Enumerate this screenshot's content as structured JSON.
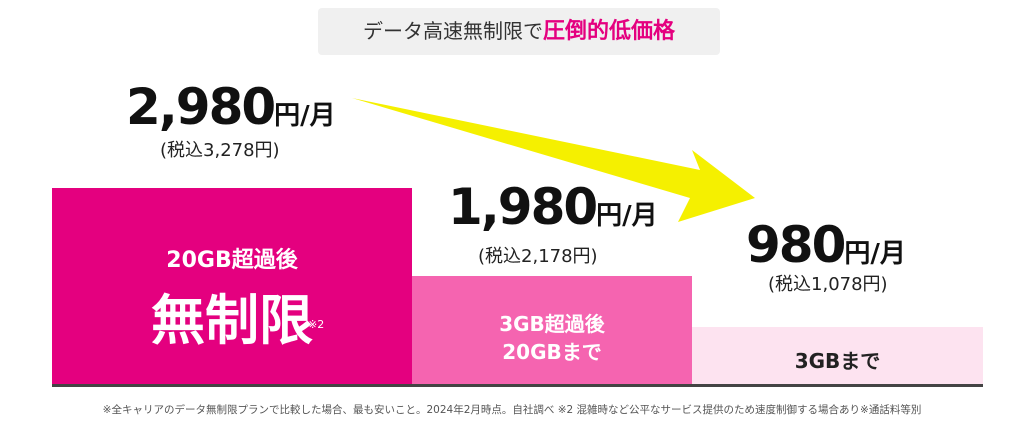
{
  "header": {
    "text": "データ高速無制限で",
    "highlight": "圧倒的低価格"
  },
  "tiers": [
    {
      "price": "2,980",
      "unit": "円/月",
      "tax": "(税込3,278円)",
      "block_label": "20GB超過後",
      "block_main": "無制限",
      "note": "※2"
    },
    {
      "price": "1,980",
      "unit": "円/月",
      "tax": "(税込2,178円)",
      "block_label": "3GB超過後",
      "block_main": "20GBまで"
    },
    {
      "price": "980",
      "unit": "円/月",
      "tax": "(税込1,078円)",
      "block_label": "3GBまで"
    }
  ],
  "footnote": "※全キャリアのデータ無制限プランで比較した場合、最も安いこと。2024年2月時点。自社調べ ※2 混雑時など公平なサービス提供のため速度制御する場合あり※通話料等別"
}
